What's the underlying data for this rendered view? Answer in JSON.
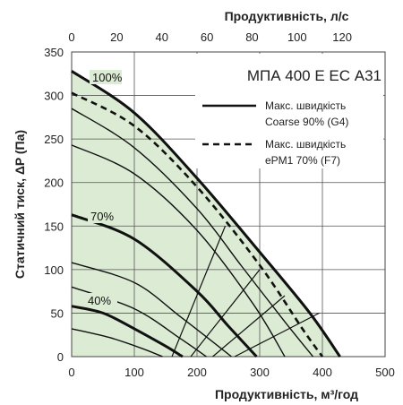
{
  "chart_data": {
    "type": "line",
    "title": "МПА 400 Е ЕС А31",
    "xlabel": "Продуктивність, м³/год",
    "x2label": "Продуктивність, л/с",
    "ylabel": "Статичний тиск, ΔP (Па)",
    "xlim": [
      0,
      500
    ],
    "ylim": [
      0,
      350
    ],
    "x2lim": [
      0,
      139
    ],
    "xticks": [
      "0",
      "100",
      "200",
      "300",
      "400",
      "500"
    ],
    "yticks": [
      "0",
      "50",
      "100",
      "150",
      "200",
      "250",
      "300",
      "350"
    ],
    "x2ticks": [
      "0",
      "20",
      "40",
      "60",
      "80",
      "100",
      "120"
    ],
    "grid": true,
    "legend_position": "top-right",
    "curve_labels": [
      "100%",
      "70%",
      "40%"
    ],
    "region_fill": "#dcebd4",
    "series": [
      {
        "key": "s100",
        "name": "100%",
        "weight": "heavy",
        "x": [
          0,
          100,
          200,
          300,
          380,
          428
        ],
        "y": [
          328,
          280,
          205,
          120,
          50,
          0
        ]
      },
      {
        "key": "s90",
        "weight": "thin",
        "x": [
          0,
          100,
          200,
          270,
          340,
          385
        ],
        "y": [
          285,
          240,
          170,
          105,
          40,
          0
        ]
      },
      {
        "key": "s80",
        "weight": "thin",
        "x": [
          0,
          100,
          200,
          290,
          340
        ],
        "y": [
          243,
          210,
          145,
          60,
          0
        ]
      },
      {
        "key": "s70",
        "name": "70%",
        "weight": "heavy",
        "x": [
          0,
          100,
          200,
          250,
          295
        ],
        "y": [
          163,
          135,
          75,
          35,
          0
        ]
      },
      {
        "key": "s60",
        "weight": "thin",
        "x": [
          0,
          100,
          175,
          255
        ],
        "y": [
          108,
          85,
          45,
          0
        ]
      },
      {
        "key": "s50",
        "weight": "thin",
        "x": [
          0,
          100,
          175,
          215
        ],
        "y": [
          80,
          55,
          20,
          0
        ]
      },
      {
        "key": "s40",
        "name": "40%",
        "weight": "heavy",
        "x": [
          0,
          50,
          100,
          150,
          177
        ],
        "y": [
          58,
          50,
          32,
          12,
          0
        ]
      },
      {
        "key": "s30",
        "weight": "thin",
        "x": [
          0,
          60,
          110,
          145
        ],
        "y": [
          32,
          22,
          10,
          0
        ]
      },
      {
        "key": "coarse",
        "name": "Макс. швидкість Coarse 90% (G4)",
        "weight": "system",
        "dash": false,
        "x": [
          0,
          100,
          200,
          300,
          380,
          428
        ],
        "y": [
          328,
          280,
          205,
          120,
          50,
          0
        ]
      },
      {
        "key": "epm1",
        "name": "Макс. швидкість ePM1 70% (F7)",
        "weight": "system",
        "dash": true,
        "x": [
          0,
          100,
          200,
          300,
          370,
          400
        ],
        "y": [
          303,
          265,
          195,
          105,
          30,
          0
        ]
      }
    ],
    "system_lines": [
      {
        "x": [
          160,
          245
        ],
        "y": [
          0,
          150
        ]
      },
      {
        "x": [
          190,
          300
        ],
        "y": [
          0,
          100
        ]
      },
      {
        "x": [
          225,
          340
        ],
        "y": [
          0,
          70
        ]
      },
      {
        "x": [
          260,
          395
        ],
        "y": [
          0,
          50
        ]
      }
    ]
  },
  "legend": {
    "items": [
      {
        "line1": "Макс. швидкість",
        "line2": "Coarse 90% (G4)",
        "dash": false
      },
      {
        "line1": "Макс. швидкість",
        "line2": "ePM1 70% (F7)",
        "dash": true
      }
    ]
  }
}
